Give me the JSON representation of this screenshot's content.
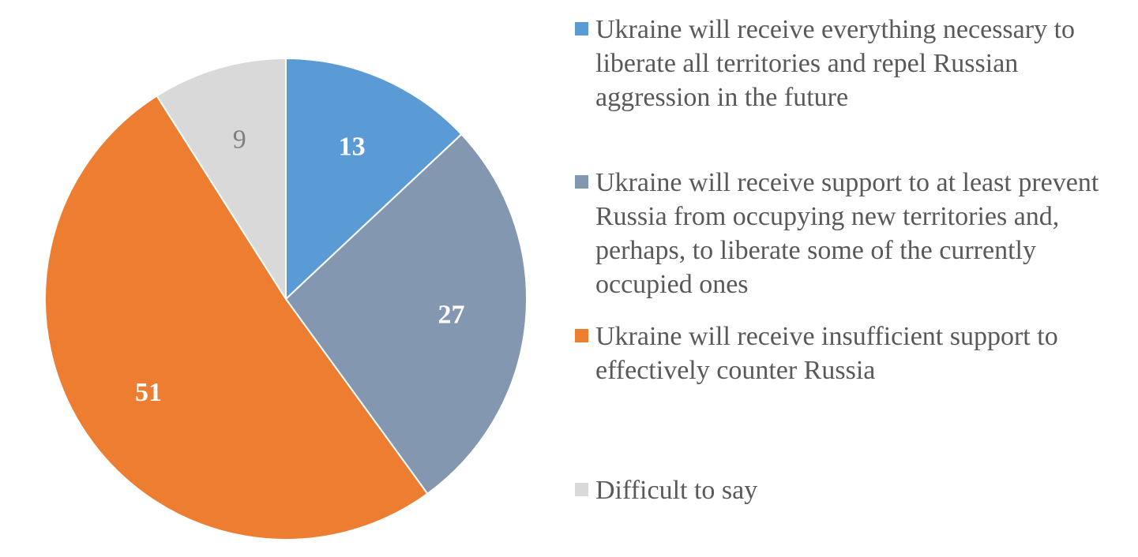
{
  "chart_data": {
    "type": "pie",
    "start_angle_deg": 0,
    "direction": "clockwise",
    "legend_position": "right",
    "slices": [
      {
        "label": "Ukraine will receive everything necessary to liberate all territories and repel Russian aggression in the future",
        "value": 13,
        "value_label": "13",
        "color": "#5b9bd5",
        "label_color": "#ffffff"
      },
      {
        "label": "Ukraine will receive support to at least prevent Russia from occupying new territories and, perhaps, to liberate some of the currently occupied ones",
        "value": 27,
        "value_label": "27",
        "color": "#8497b0",
        "label_color": "#ffffff"
      },
      {
        "label": "Ukraine will receive insufficient support to effectively counter Russia",
        "value": 51,
        "value_label": "51",
        "color": "#ed7d31",
        "label_color": "#ffffff"
      },
      {
        "label": "Difficult to say",
        "value": 9,
        "value_label": "9",
        "color": "#d9d9d9",
        "label_color": "#7f7f7f"
      }
    ]
  }
}
